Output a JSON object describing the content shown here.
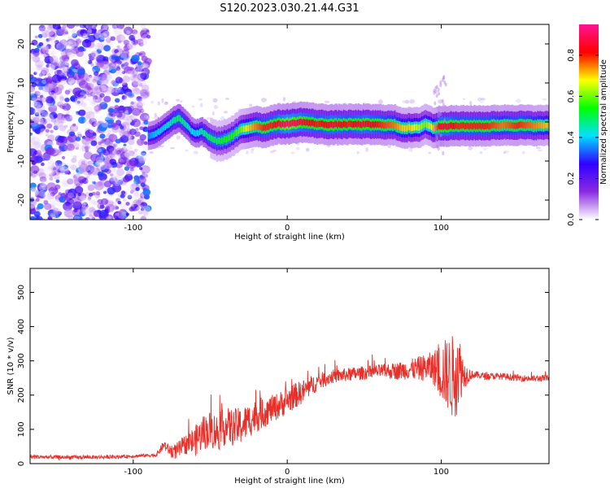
{
  "title": "S120.2023.030.21.44.G31",
  "chart_data": [
    {
      "type": "heatmap",
      "xlabel": "Height of straight line (km)",
      "ylabel": "Frequency (Hz)",
      "xlim": [
        -167,
        170
      ],
      "ylim": [
        -25,
        25
      ],
      "x_ticks": [
        -100,
        0,
        100
      ],
      "y_ticks": [
        -20,
        -10,
        0,
        10,
        20
      ],
      "colorbar": {
        "label": "Normalized spectral amplitude",
        "range": [
          0,
          0.95
        ],
        "ticks": [
          0.0,
          0.2,
          0.4,
          0.6,
          0.8
        ],
        "colors": [
          "#ffffff",
          "#8a2be2",
          "#3000ff",
          "#00e0ff",
          "#00ff00",
          "#ffff00",
          "#ff0000",
          "#ff1493"
        ]
      },
      "noise_region": {
        "x_from": -167,
        "x_to": -90,
        "note_level": 0.1
      },
      "ridge": {
        "x": [
          -90,
          -85,
          -80,
          -75,
          -70,
          -65,
          -60,
          -55,
          -50,
          -45,
          -40,
          -35,
          -30,
          -25,
          -20,
          -15,
          -10,
          -5,
          0,
          10,
          20,
          30,
          40,
          50,
          60,
          70,
          75,
          80,
          85,
          90,
          95,
          100,
          105,
          110,
          120,
          130,
          140,
          150,
          160,
          170
        ],
        "y": [
          -3.5,
          -3,
          -1.5,
          0,
          1,
          -1,
          -3,
          -2.5,
          -4,
          -5,
          -4.5,
          -3.5,
          -2,
          -1.5,
          -1,
          -1.5,
          -0.8,
          -0.5,
          -0.5,
          0,
          -0.5,
          -0.7,
          -0.6,
          -0.6,
          -0.7,
          -0.8,
          -1.5,
          -1.5,
          -1.5,
          -0.5,
          -1.5,
          -1,
          -1,
          -1,
          -1,
          -1,
          -0.8,
          -0.8,
          -0.9,
          -0.9
        ],
        "amplitude": [
          0.35,
          0.4,
          0.4,
          0.45,
          0.5,
          0.45,
          0.4,
          0.45,
          0.5,
          0.5,
          0.55,
          0.55,
          0.6,
          0.7,
          0.75,
          0.8,
          0.8,
          0.85,
          0.9,
          0.85,
          0.8,
          0.85,
          0.8,
          0.85,
          0.8,
          0.75,
          0.7,
          0.7,
          0.65,
          0.6,
          0.7,
          0.85,
          0.85,
          0.8,
          0.8,
          0.8,
          0.75,
          0.8,
          0.75,
          0.7
        ]
      }
    },
    {
      "type": "line",
      "xlabel": "Height of straight line (km)",
      "ylabel": "SNR (10 * v/v)",
      "xlim": [
        -167,
        170
      ],
      "ylim": [
        0,
        570
      ],
      "x_ticks": [
        -100,
        0,
        100
      ],
      "y_ticks": [
        0,
        100,
        200,
        300,
        400,
        500
      ],
      "series": [
        {
          "color": "#e8302a",
          "x": [
            -167,
            -140,
            -110,
            -85,
            -80,
            -77,
            -72,
            -65,
            -60,
            -55,
            -50,
            -45,
            -40,
            -35,
            -30,
            -25,
            -20,
            -15,
            -10,
            -5,
            0,
            10,
            20,
            30,
            40,
            50,
            60,
            70,
            80,
            90,
            95,
            100,
            105,
            108,
            110,
            112,
            115,
            120,
            130,
            140,
            150,
            160,
            170
          ],
          "y": [
            20,
            18,
            20,
            25,
            55,
            40,
            35,
            60,
            65,
            90,
            100,
            90,
            110,
            105,
            110,
            125,
            140,
            150,
            160,
            170,
            185,
            210,
            240,
            255,
            260,
            265,
            270,
            270,
            275,
            280,
            280,
            270,
            260,
            250,
            300,
            275,
            260,
            260,
            255,
            255,
            250,
            248,
            250
          ],
          "noise_amp": [
            6,
            6,
            5,
            5,
            15,
            15,
            25,
            30,
            45,
            50,
            55,
            55,
            55,
            55,
            55,
            50,
            50,
            45,
            40,
            40,
            40,
            35,
            25,
            20,
            20,
            20,
            20,
            25,
            30,
            40,
            50,
            90,
            110,
            130,
            160,
            100,
            40,
            12,
            10,
            10,
            10,
            10,
            10
          ]
        }
      ]
    }
  ]
}
